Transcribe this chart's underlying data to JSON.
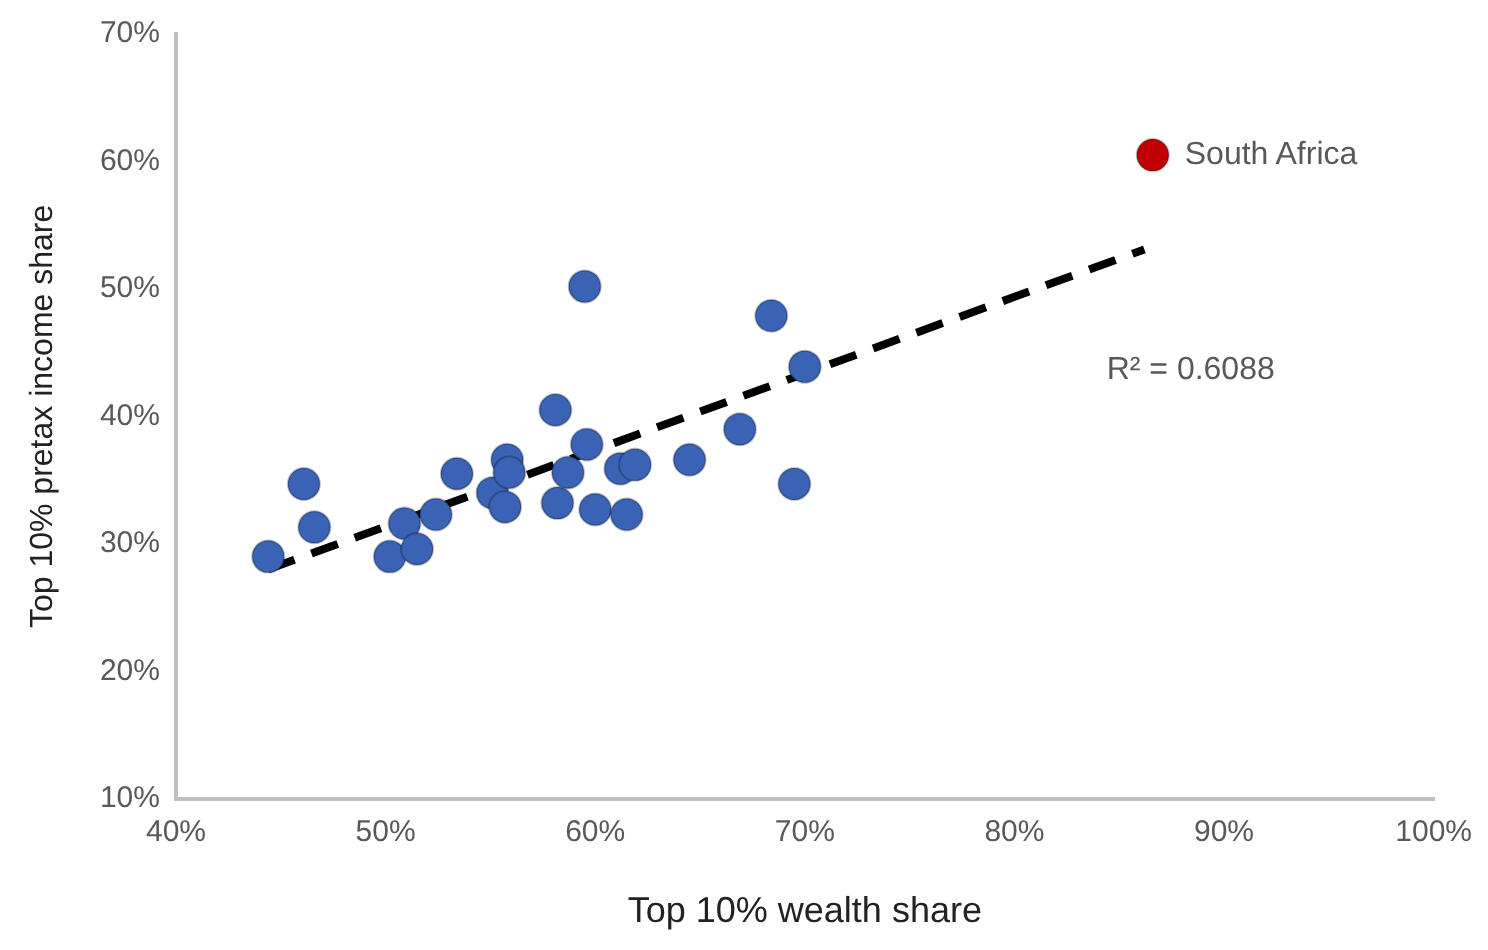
{
  "chart_data": {
    "type": "scatter",
    "xlabel": "Top 10% wealth share",
    "ylabel": "Top 10% pretax income share",
    "xlim": [
      40,
      100
    ],
    "xticks": [
      {
        "value": 40,
        "label": "40%"
      },
      {
        "value": 50,
        "label": "50%"
      },
      {
        "value": 60,
        "label": "60%"
      },
      {
        "value": 70,
        "label": "70%"
      },
      {
        "value": 80,
        "label": "80%"
      },
      {
        "value": 90,
        "label": "90%"
      },
      {
        "value": 100,
        "label": "100%"
      }
    ],
    "ylim": [
      10,
      70
    ],
    "yticks": [
      {
        "value": 10,
        "label": "10%"
      },
      {
        "value": 20,
        "label": "20%"
      },
      {
        "value": 30,
        "label": "30%"
      },
      {
        "value": 40,
        "label": "40%"
      },
      {
        "value": 50,
        "label": "50%"
      },
      {
        "value": 60,
        "label": "60%"
      },
      {
        "value": 70,
        "label": "70%"
      }
    ],
    "grid": false,
    "legend": false,
    "marker": "circle",
    "series": [
      {
        "type": "scatter",
        "color": "#3a62b5",
        "x": [
          44.4,
          46.1,
          46.6,
          50.2,
          50.9,
          51.5,
          52.4,
          53.4,
          55.1,
          55.7,
          55.8,
          55.9,
          58.1,
          58.2,
          58.7,
          59.5,
          59.6,
          60.0,
          61.2,
          61.5,
          61.9,
          64.5,
          66.9,
          68.4,
          69.5,
          70.0
        ],
        "values": [
          29.0,
          34.7,
          31.3,
          29.0,
          31.6,
          29.6,
          32.3,
          35.5,
          34.0,
          32.9,
          36.6,
          35.6,
          40.5,
          33.2,
          35.6,
          50.2,
          37.8,
          32.7,
          35.9,
          32.3,
          36.2,
          36.6,
          39.0,
          47.9,
          34.7,
          43.9
        ]
      },
      {
        "type": "scatter",
        "color": "#c00000",
        "x": [
          86.6
        ],
        "values": [
          60.5
        ]
      },
      {
        "type": "line",
        "color": "#000000",
        "line_style": "dashed",
        "marker": "none",
        "x": [
          44.4,
          86.2
        ],
        "values": [
          28.0,
          53.1
        ]
      }
    ],
    "annotations": [
      {
        "text": "South Africa",
        "x": 86.6,
        "y": 60.5
      },
      "R² = 0.6088"
    ]
  }
}
